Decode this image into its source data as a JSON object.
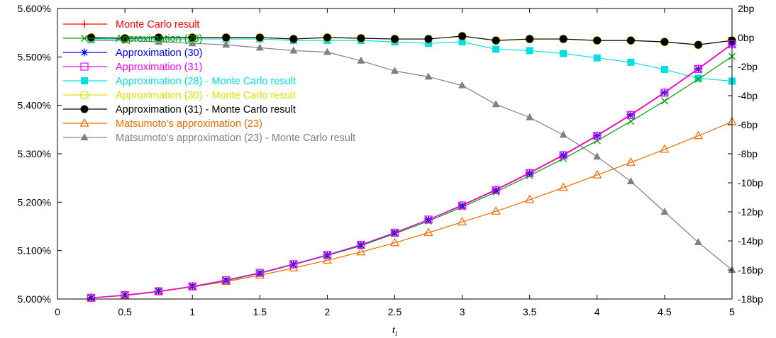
{
  "chart_data": {
    "type": "line",
    "x": [
      0.25,
      0.5,
      0.75,
      1.0,
      1.25,
      1.5,
      1.75,
      2.0,
      2.25,
      2.5,
      2.75,
      3.0,
      3.25,
      3.5,
      3.75,
      4.0,
      4.25,
      4.5,
      4.75,
      5.0
    ],
    "xlabel_main": "t",
    "xlabel_sub": "i",
    "xlim": [
      0,
      5
    ],
    "xticks": [
      0,
      0.5,
      1,
      1.5,
      2,
      2.5,
      3,
      3.5,
      4,
      4.5,
      5
    ],
    "xtick_labels": [
      "0",
      "0.5",
      "1",
      "1.5",
      "2",
      "2.5",
      "3",
      "3.5",
      "4",
      "4.5",
      "5"
    ],
    "y_left": {
      "lim": [
        5.0,
        5.6
      ],
      "ticks": [
        5.0,
        5.1,
        5.2,
        5.3,
        5.4,
        5.5,
        5.6
      ],
      "tick_labels": [
        "5.000%",
        "5.100%",
        "5.200%",
        "5.300%",
        "5.400%",
        "5.500%",
        "5.600%"
      ]
    },
    "y_right": {
      "lim": [
        -18,
        2
      ],
      "ticks": [
        -18,
        -16,
        -14,
        -12,
        -10,
        -8,
        -6,
        -4,
        -2,
        0,
        2
      ],
      "tick_labels": [
        "-18bp",
        "-16bp",
        "-14bp",
        "-12bp",
        "-10bp",
        "-8bp",
        "-6bp",
        "-4bp",
        "-2bp",
        "0bp",
        "2bp"
      ]
    },
    "legend_position": "top-left",
    "grid": false,
    "series": [
      {
        "name": "Monte Carlo result",
        "axis": "left",
        "color": "#ff0000",
        "marker": "plus",
        "values": [
          5.0025,
          5.008,
          5.016,
          5.026,
          5.039,
          5.054,
          5.072,
          5.091,
          5.112,
          5.137,
          5.164,
          5.194,
          5.226,
          5.261,
          5.298,
          5.338,
          5.381,
          5.427,
          5.476,
          5.527
        ]
      },
      {
        "name": "Approximation (28)",
        "axis": "left",
        "color": "#00a000",
        "marker": "x",
        "values": [
          5.0025,
          5.008,
          5.016,
          5.026,
          5.038,
          5.053,
          5.071,
          5.09,
          5.11,
          5.135,
          5.161,
          5.19,
          5.221,
          5.255,
          5.29,
          5.327,
          5.367,
          5.409,
          5.454,
          5.501
        ]
      },
      {
        "name": "Approximation (30)",
        "axis": "left",
        "color": "#0000ff",
        "marker": "asterisk",
        "values": [
          5.0025,
          5.008,
          5.016,
          5.026,
          5.039,
          5.054,
          5.072,
          5.091,
          5.112,
          5.137,
          5.164,
          5.193,
          5.225,
          5.26,
          5.297,
          5.337,
          5.38,
          5.426,
          5.475,
          5.526
        ]
      },
      {
        "name": "Approximation (31)",
        "axis": "left",
        "color": "#ff00ff",
        "marker": "square-open",
        "values": [
          5.0025,
          5.008,
          5.016,
          5.026,
          5.039,
          5.054,
          5.072,
          5.091,
          5.112,
          5.137,
          5.164,
          5.193,
          5.225,
          5.26,
          5.297,
          5.337,
          5.38,
          5.426,
          5.475,
          5.526
        ]
      },
      {
        "name": "Approximation (28) - Monte Carlo result",
        "axis": "right",
        "color": "#00e0e0",
        "marker": "square-filled",
        "values": [
          -0.1,
          -0.1,
          -0.1,
          -0.1,
          -0.1,
          -0.1,
          -0.2,
          -0.2,
          -0.2,
          -0.3,
          -0.4,
          -0.3,
          -0.8,
          -0.9,
          -1.1,
          -1.4,
          -1.7,
          -2.2,
          -2.8,
          -3.0
        ]
      },
      {
        "name": "Approximation (30) - Monte Carlo result",
        "axis": "right",
        "color": "#e0e000",
        "marker": "circle-open",
        "values": [
          0.0,
          -0.05,
          0.0,
          0.0,
          0.0,
          0.0,
          -0.1,
          0.0,
          -0.05,
          -0.1,
          -0.1,
          0.1,
          -0.2,
          -0.1,
          -0.1,
          -0.2,
          -0.2,
          -0.3,
          -0.5,
          -0.2
        ]
      },
      {
        "name": "Approximation (31) - Monte Carlo result",
        "axis": "right",
        "color": "#000000",
        "marker": "circle-filled",
        "values": [
          0.0,
          -0.05,
          0.0,
          0.0,
          0.0,
          0.0,
          -0.1,
          0.0,
          -0.05,
          -0.1,
          -0.1,
          0.1,
          -0.2,
          -0.1,
          -0.1,
          -0.2,
          -0.2,
          -0.3,
          -0.5,
          -0.2
        ]
      },
      {
        "name": "Matsumoto’s approximation (23)",
        "axis": "left",
        "color": "#ee6a00",
        "marker": "triangle-open",
        "values": [
          5.0025,
          5.007,
          5.015,
          5.025,
          5.036,
          5.049,
          5.064,
          5.08,
          5.097,
          5.116,
          5.137,
          5.159,
          5.181,
          5.205,
          5.23,
          5.256,
          5.282,
          5.309,
          5.337,
          5.366
        ]
      },
      {
        "name": "Matsumoto’s approximation (23) - Monte Carlo result",
        "axis": "right",
        "color": "#808080",
        "marker": "triangle-filled",
        "values": [
          -0.2,
          -0.2,
          -0.3,
          -0.4,
          -0.5,
          -0.7,
          -0.9,
          -1.0,
          -1.6,
          -2.3,
          -2.7,
          -3.3,
          -4.6,
          -5.5,
          -6.7,
          -8.2,
          -9.9,
          -12.0,
          -14.1,
          -16.0
        ]
      }
    ]
  }
}
